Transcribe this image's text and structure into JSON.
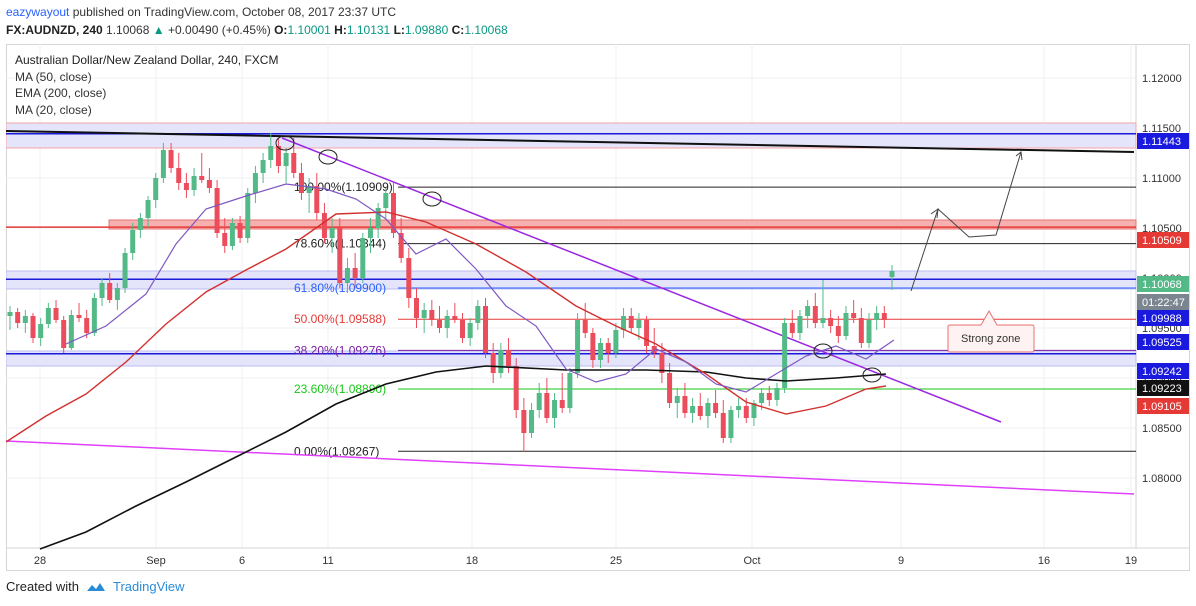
{
  "header": {
    "author": "eazywayout",
    "published": "published on TradingView.com, October 08, 2017 23:37 UTC",
    "symbol": "FX:AUDNZD, 240",
    "last": "1.10068",
    "change_arrow": "▲",
    "change": "+0.00490 (+0.45%)",
    "o_label": "O:",
    "o": "1.10001",
    "h_label": "H:",
    "h": "1.10131",
    "l_label": "L:",
    "l": "1.09880",
    "c_label": "C:",
    "c": "1.10068"
  },
  "legend": {
    "title": "Australian Dollar/New Zealand Dollar, 240, FXCM",
    "ind1": "MA (50, close)",
    "ind2": "EMA (200, close)",
    "ind3": "MA (20, close)"
  },
  "footer": {
    "created_with": "Created with",
    "brand": "TradingView",
    "brand_icon": "tradingview-cloud-icon"
  },
  "colors": {
    "up": "#53b987",
    "down": "#eb4d5c",
    "ma50": "#d32f2f",
    "ema200": "#111111",
    "ma20": "#7e57c2",
    "trend_purple": "#9c27e0",
    "trend_magenta": "#e040fb",
    "blue_level": "#1a1adf",
    "red_level": "#e53935",
    "fib_green": "#16c716"
  },
  "chart_data": {
    "type": "candlestick",
    "symbol": "AUDNZD",
    "timeframe": "240",
    "x_tick_labels": [
      "28",
      "Sep",
      "6",
      "11",
      "18",
      "25",
      "Oct",
      "9",
      "16",
      "19"
    ],
    "y_tick_labels": [
      "1.12000",
      "1.11500",
      "1.11000",
      "1.10500",
      "1.10000",
      "1.09500",
      "1.09000",
      "1.08500",
      "1.08000"
    ],
    "ylim": [
      1.0755,
      1.1245
    ],
    "grid": true,
    "price_badges": [
      {
        "label": "1.11443",
        "kind": "blue"
      },
      {
        "label": "1.10509",
        "kind": "red"
      },
      {
        "label": "1.10068",
        "kind": "green"
      },
      {
        "label": "01:22:47",
        "kind": "grey"
      },
      {
        "label": "1.09988",
        "kind": "blue"
      },
      {
        "label": "1.09525",
        "kind": "blue"
      },
      {
        "label": "1.09242",
        "kind": "blue"
      },
      {
        "label": "1.09223",
        "kind": "black"
      },
      {
        "label": "1.09105",
        "kind": "red"
      }
    ],
    "fibonacci": [
      {
        "label": "100.00%(1.10909)",
        "price": 1.10909,
        "color": "#222222"
      },
      {
        "label": "78.60%(1.10344)",
        "price": 1.10344,
        "color": "#222222"
      },
      {
        "label": "61.80%(1.09900)",
        "price": 1.099,
        "color": "#2962ff"
      },
      {
        "label": "50.00%(1.09588)",
        "price": 1.09588,
        "color": "#e53935"
      },
      {
        "label": "38.20%(1.09276)",
        "price": 1.09276,
        "color": "#7b1fa2"
      },
      {
        "label": "23.60%(1.08890)",
        "price": 1.0889,
        "color": "#16c716"
      },
      {
        "label": "0.00%(1.08267)",
        "price": 1.08267,
        "color": "#222222"
      }
    ],
    "annotations": [
      {
        "text": "Strong zone"
      }
    ],
    "candles": [
      [
        1.0962,
        1.0972,
        1.0948,
        1.0966
      ],
      [
        1.0966,
        1.097,
        1.095,
        1.0955
      ],
      [
        1.0955,
        1.0968,
        1.0945,
        1.0962
      ],
      [
        1.0962,
        1.0965,
        1.0935,
        1.094
      ],
      [
        1.094,
        1.096,
        1.0932,
        1.0954
      ],
      [
        1.0954,
        1.0975,
        1.095,
        1.097
      ],
      [
        1.097,
        1.0978,
        1.0955,
        1.0958
      ],
      [
        1.0958,
        1.0962,
        1.0925,
        1.093
      ],
      [
        1.093,
        1.0968,
        1.0928,
        1.0963
      ],
      [
        1.0963,
        1.0975,
        1.0956,
        1.096
      ],
      [
        1.096,
        1.0968,
        1.094,
        1.0945
      ],
      [
        1.0945,
        1.0985,
        1.0942,
        1.098
      ],
      [
        1.098,
        1.1,
        1.0972,
        1.0995
      ],
      [
        1.0995,
        1.1005,
        1.0975,
        1.0978
      ],
      [
        1.0978,
        1.0995,
        1.0968,
        1.099
      ],
      [
        1.099,
        1.103,
        1.0985,
        1.1025
      ],
      [
        1.1025,
        1.1055,
        1.1018,
        1.1048
      ],
      [
        1.1048,
        1.1065,
        1.104,
        1.106
      ],
      [
        1.106,
        1.1082,
        1.105,
        1.1078
      ],
      [
        1.1078,
        1.1105,
        1.107,
        1.11
      ],
      [
        1.11,
        1.1135,
        1.1095,
        1.1128
      ],
      [
        1.1128,
        1.1135,
        1.1105,
        1.111
      ],
      [
        1.111,
        1.1125,
        1.1088,
        1.1095
      ],
      [
        1.1095,
        1.1105,
        1.108,
        1.1088
      ],
      [
        1.1088,
        1.111,
        1.1082,
        1.1102
      ],
      [
        1.1102,
        1.1125,
        1.1095,
        1.1098
      ],
      [
        1.1098,
        1.111,
        1.1085,
        1.109
      ],
      [
        1.109,
        1.1098,
        1.104,
        1.1045
      ],
      [
        1.1045,
        1.106,
        1.1025,
        1.1032
      ],
      [
        1.1032,
        1.106,
        1.1028,
        1.1055
      ],
      [
        1.1055,
        1.1062,
        1.1035,
        1.104
      ],
      [
        1.104,
        1.109,
        1.1035,
        1.1085
      ],
      [
        1.1085,
        1.1112,
        1.1075,
        1.1105
      ],
      [
        1.1105,
        1.1125,
        1.1095,
        1.1118
      ],
      [
        1.1118,
        1.1145,
        1.111,
        1.1132
      ],
      [
        1.1132,
        1.114,
        1.1105,
        1.1112
      ],
      [
        1.1112,
        1.113,
        1.1095,
        1.1125
      ],
      [
        1.1125,
        1.114,
        1.11,
        1.1105
      ],
      [
        1.1105,
        1.1115,
        1.1078,
        1.1085
      ],
      [
        1.1085,
        1.11,
        1.1065,
        1.1092
      ],
      [
        1.1092,
        1.1105,
        1.1058,
        1.1065
      ],
      [
        1.1065,
        1.1075,
        1.1035,
        1.104
      ],
      [
        1.104,
        1.106,
        1.1025,
        1.105
      ],
      [
        1.105,
        1.106,
        1.099,
        1.0995
      ],
      [
        1.0995,
        1.102,
        1.0985,
        1.101
      ],
      [
        1.101,
        1.1025,
        1.099,
        1.1
      ],
      [
        1.1,
        1.1045,
        1.0995,
        1.104
      ],
      [
        1.104,
        1.106,
        1.1025,
        1.105
      ],
      [
        1.105,
        1.1075,
        1.104,
        1.107
      ],
      [
        1.107,
        1.109,
        1.106,
        1.1085
      ],
      [
        1.1085,
        1.1095,
        1.104,
        1.1045
      ],
      [
        1.1045,
        1.106,
        1.1015,
        1.102
      ],
      [
        1.102,
        1.103,
        1.097,
        1.098
      ],
      [
        1.098,
        1.099,
        1.095,
        1.096
      ],
      [
        1.096,
        1.0975,
        1.0945,
        1.0968
      ],
      [
        1.0968,
        1.0978,
        1.0952,
        1.0958
      ],
      [
        1.0958,
        1.0972,
        1.0945,
        1.095
      ],
      [
        1.095,
        1.0968,
        1.094,
        1.0962
      ],
      [
        1.0962,
        1.0975,
        1.0955,
        1.0958
      ],
      [
        1.0958,
        1.0965,
        1.0935,
        1.094
      ],
      [
        1.094,
        1.096,
        1.0932,
        1.0955
      ],
      [
        1.0955,
        1.0978,
        1.0948,
        1.0972
      ],
      [
        1.0972,
        1.098,
        1.092,
        1.0925
      ],
      [
        1.0925,
        1.0935,
        1.0895,
        1.0905
      ],
      [
        1.0905,
        1.0935,
        1.09,
        1.0928
      ],
      [
        1.0928,
        1.094,
        1.0905,
        1.0912
      ],
      [
        1.0912,
        1.092,
        1.086,
        1.0868
      ],
      [
        1.0868,
        1.088,
        1.0826,
        1.0845
      ],
      [
        1.0845,
        1.0875,
        1.084,
        1.0868
      ],
      [
        1.0868,
        1.0895,
        1.086,
        1.0885
      ],
      [
        1.0885,
        1.09,
        1.0855,
        1.086
      ],
      [
        1.086,
        1.0885,
        1.085,
        1.0878
      ],
      [
        1.0878,
        1.0905,
        1.0865,
        1.087
      ],
      [
        1.087,
        1.091,
        1.0865,
        1.0905
      ],
      [
        1.0905,
        1.0965,
        1.09,
        1.0958
      ],
      [
        1.0958,
        1.0975,
        1.094,
        1.0945
      ],
      [
        1.0945,
        1.095,
        1.091,
        1.0918
      ],
      [
        1.0918,
        1.094,
        1.091,
        1.0935
      ],
      [
        1.0935,
        1.094,
        1.0915,
        1.0925
      ],
      [
        1.0925,
        1.0955,
        1.092,
        1.0948
      ],
      [
        1.0948,
        1.097,
        1.094,
        1.0962
      ],
      [
        1.0962,
        1.097,
        1.0945,
        1.095
      ],
      [
        1.095,
        1.0965,
        1.0938,
        1.0958
      ],
      [
        1.0958,
        1.0962,
        1.0925,
        1.0932
      ],
      [
        1.0932,
        1.095,
        1.092,
        1.0925
      ],
      [
        1.0925,
        1.0935,
        1.0895,
        1.0905
      ],
      [
        1.0905,
        1.0915,
        1.087,
        1.0875
      ],
      [
        1.0875,
        1.089,
        1.086,
        1.0882
      ],
      [
        1.0882,
        1.0895,
        1.086,
        1.0865
      ],
      [
        1.0865,
        1.088,
        1.0855,
        1.0872
      ],
      [
        1.0872,
        1.0885,
        1.0858,
        1.0862
      ],
      [
        1.0862,
        1.088,
        1.085,
        1.0875
      ],
      [
        1.0875,
        1.0888,
        1.086,
        1.0865
      ],
      [
        1.0865,
        1.0878,
        1.0835,
        1.084
      ],
      [
        1.084,
        1.0872,
        1.0835,
        1.0868
      ],
      [
        1.0868,
        1.088,
        1.086,
        1.0872
      ],
      [
        1.0872,
        1.088,
        1.0855,
        1.086
      ],
      [
        1.086,
        1.0878,
        1.0852,
        1.0875
      ],
      [
        1.0875,
        1.089,
        1.0868,
        1.0885
      ],
      [
        1.0885,
        1.0892,
        1.0872,
        1.0878
      ],
      [
        1.0878,
        1.0895,
        1.0872,
        1.089
      ],
      [
        1.089,
        1.096,
        1.0885,
        1.0955
      ],
      [
        1.0955,
        1.0968,
        1.094,
        1.0945
      ],
      [
        1.0945,
        1.0968,
        1.0938,
        1.0962
      ],
      [
        1.0962,
        1.0978,
        1.095,
        1.0972
      ],
      [
        1.0972,
        1.0985,
        1.095,
        1.0955
      ],
      [
        1.0955,
        1.0998,
        1.095,
        1.096
      ],
      [
        1.096,
        1.0968,
        1.0945,
        1.0952
      ],
      [
        1.0952,
        1.0962,
        1.0935,
        1.0942
      ],
      [
        1.0942,
        1.0972,
        1.0938,
        1.0965
      ],
      [
        1.0965,
        1.0978,
        1.0955,
        1.096
      ],
      [
        1.096,
        1.097,
        1.093,
        1.0935
      ],
      [
        1.0935,
        1.0965,
        1.093,
        1.0958
      ],
      [
        1.0958,
        1.0972,
        1.0948,
        1.0965
      ],
      [
        1.0965,
        1.0972,
        1.095,
        1.0958
      ],
      [
        1.1001,
        1.1013,
        1.0988,
        1.1007
      ]
    ]
  }
}
